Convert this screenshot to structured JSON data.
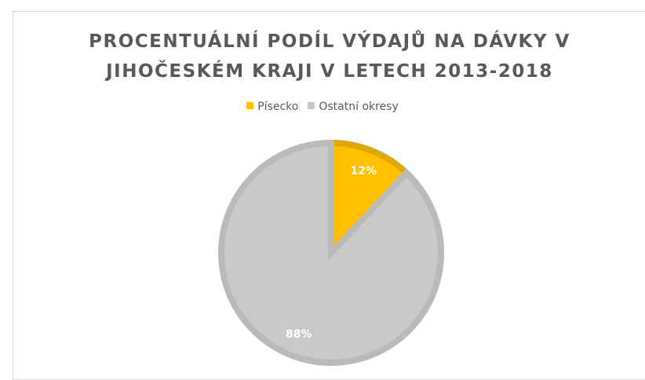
{
  "chart_data": {
    "type": "pie",
    "title": "PROCENTUÁLNÍ PODÍL VÝDAJŮ NA DÁVKY V JIHOČESKÉM KRAJI V LETECH 2013-2018",
    "categories": [
      "Písecko",
      "Ostatní okresy"
    ],
    "values": [
      12,
      88
    ],
    "value_labels": [
      "12%",
      "88%"
    ],
    "colors": [
      "#ffc000",
      "#c9c9c9"
    ],
    "legend": "top"
  }
}
